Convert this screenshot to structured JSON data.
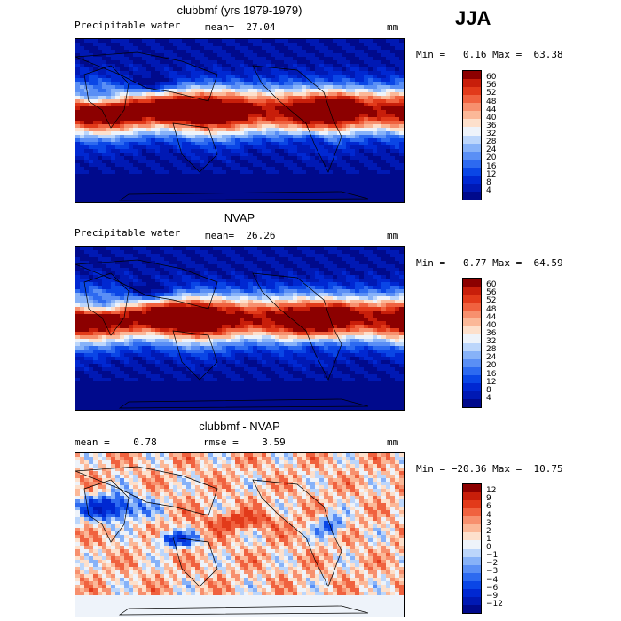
{
  "season": "JJA",
  "panels": [
    {
      "title": "clubbmf (yrs 1979-1979)",
      "left_label": "Precipitable water",
      "mid_label": "mean=  27.04",
      "unit": "mm",
      "minmax": "Min =   0.16 Max =  63.38",
      "colorbar": [
        "4",
        "8",
        "12",
        "16",
        "20",
        "24",
        "28",
        "32",
        "36",
        "40",
        "44",
        "48",
        "52",
        "56",
        "60"
      ]
    },
    {
      "title": "NVAP",
      "left_label": "Precipitable water",
      "mid_label": "mean=  26.26",
      "unit": "mm",
      "minmax": "Min =   0.77 Max =  64.59",
      "colorbar": [
        "4",
        "8",
        "12",
        "16",
        "20",
        "24",
        "28",
        "32",
        "36",
        "40",
        "44",
        "48",
        "52",
        "56",
        "60"
      ]
    },
    {
      "title": "clubbmf - NVAP",
      "left_label": "mean =    0.78",
      "mid_label": "rmse =    3.59",
      "unit": "mm",
      "minmax": "Min = −20.36 Max =  10.75",
      "colorbar": [
        "−12",
        "−9",
        "−6",
        "−4",
        "−3",
        "−2",
        "−1",
        "0",
        "1",
        "2",
        "3",
        "4",
        "6",
        "9",
        "12"
      ]
    }
  ],
  "colors": {
    "seq": [
      "#000a8c",
      "#0019b4",
      "#0028d2",
      "#0a46e6",
      "#2d6af0",
      "#5a8ff5",
      "#87b2f8",
      "#bcd6fb",
      "#eef3fa",
      "#fde0cc",
      "#fbb898",
      "#f7906e",
      "#f0623f",
      "#e23a1a",
      "#c81e0a",
      "#8c0000"
    ]
  },
  "chart_data": [
    {
      "type": "heatmap",
      "title": "clubbmf (yrs 1979-1979)",
      "variable": "Precipitable water",
      "mean": 27.04,
      "min": 0.16,
      "max": 63.38,
      "units": "mm",
      "levels": [
        4,
        8,
        12,
        16,
        20,
        24,
        28,
        32,
        36,
        40,
        44,
        48,
        52,
        56,
        60
      ]
    },
    {
      "type": "heatmap",
      "title": "NVAP",
      "variable": "Precipitable water",
      "mean": 26.26,
      "min": 0.77,
      "max": 64.59,
      "units": "mm",
      "levels": [
        4,
        8,
        12,
        16,
        20,
        24,
        28,
        32,
        36,
        40,
        44,
        48,
        52,
        56,
        60
      ]
    },
    {
      "type": "heatmap",
      "title": "clubbmf - NVAP",
      "mean": 0.78,
      "rmse": 3.59,
      "min": -20.36,
      "max": 10.75,
      "units": "mm",
      "levels": [
        -12,
        -9,
        -6,
        -4,
        -3,
        -2,
        -1,
        0,
        1,
        2,
        3,
        4,
        6,
        9,
        12
      ]
    }
  ]
}
